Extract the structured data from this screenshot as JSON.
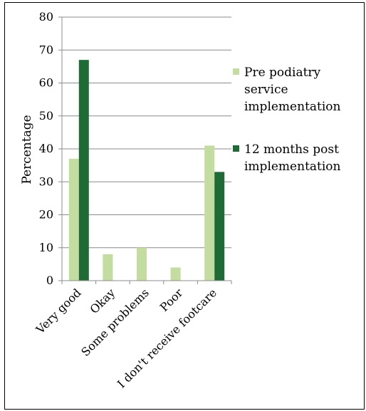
{
  "chart_data": {
    "type": "bar",
    "categories": [
      "Very good",
      "Okay",
      "Some problems",
      "Poor",
      "I don't receive footcare"
    ],
    "series": [
      {
        "name": "Pre podiatry service implementation",
        "values": [
          37,
          8,
          10,
          4,
          41
        ],
        "color": "#c3dca0"
      },
      {
        "name": "12 months post implementation",
        "values": [
          67,
          0,
          0,
          0,
          33
        ],
        "color": "#1e6b35"
      }
    ],
    "ylabel": "Percentage",
    "xlabel": "",
    "ylim": [
      0,
      80
    ],
    "yticks": [
      0,
      10,
      20,
      30,
      40,
      50,
      60,
      70,
      80
    ],
    "grid": true,
    "legend": {
      "position": "right",
      "entries": [
        {
          "lines": [
            "Pre podiatry",
            "service",
            "implementation"
          ]
        },
        {
          "lines": [
            "12 months post",
            "implementation"
          ]
        }
      ]
    }
  }
}
